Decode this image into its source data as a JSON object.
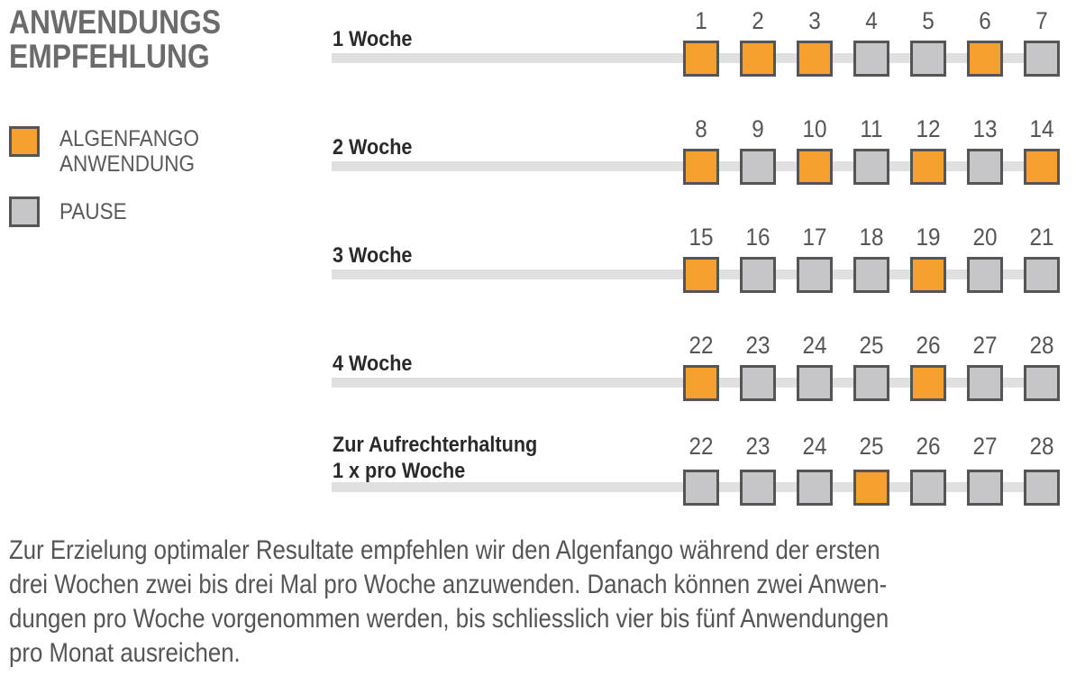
{
  "title": {
    "line1": "ANWENDUNGS",
    "line2": "EMPFEHLUNG"
  },
  "colors": {
    "application": "#F6A02F",
    "pause": "#C6C6C8",
    "border": "#555555"
  },
  "legend": [
    {
      "type": "application",
      "lines": [
        "ALGENFANGO",
        "ANWENDUNG"
      ]
    },
    {
      "type": "pause",
      "lines": [
        "PAUSE"
      ]
    }
  ],
  "weeks": [
    {
      "label_lines": [
        "1 Woche"
      ],
      "days": [
        1,
        2,
        3,
        4,
        5,
        6,
        7
      ],
      "active": [
        1,
        2,
        3,
        6
      ]
    },
    {
      "label_lines": [
        "2 Woche"
      ],
      "days": [
        8,
        9,
        10,
        11,
        12,
        13,
        14
      ],
      "active": [
        8,
        10,
        12,
        14
      ]
    },
    {
      "label_lines": [
        "3 Woche"
      ],
      "days": [
        15,
        16,
        17,
        18,
        19,
        20,
        21
      ],
      "active": [
        15,
        19
      ]
    },
    {
      "label_lines": [
        "4 Woche"
      ],
      "days": [
        22,
        23,
        24,
        25,
        26,
        27,
        28
      ],
      "active": [
        22,
        26
      ]
    },
    {
      "label_lines": [
        "Zur Aufrechterhaltung",
        "1 x pro Woche"
      ],
      "days": [
        22,
        23,
        24,
        25,
        26,
        27,
        28
      ],
      "active": [
        25
      ]
    }
  ],
  "footer_lines": [
    "Zur Erzielung optimaler Resultate empfehlen wir den Algenfango während der ersten",
    "drei Wochen zwei bis drei Mal pro Woche anzuwenden. Danach können zwei Anwen-",
    "dungen pro Woche vorgenommen werden, bis schliesslich vier bis fünf Anwendungen",
    "pro Monat ausreichen."
  ]
}
